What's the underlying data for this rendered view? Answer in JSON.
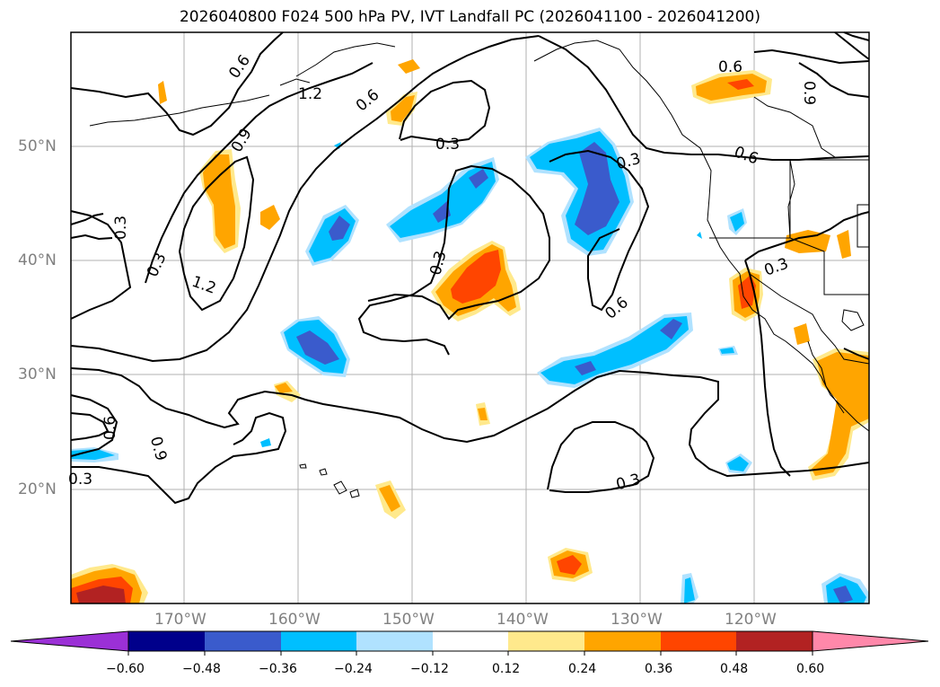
{
  "title": "2026040800 F024 500 hPa PV, IVT Landfall PC (2026041100 - 2026041200)",
  "lat_labels": [
    "50°N",
    "40°N",
    "30°N",
    "20°N"
  ],
  "lon_labels": [
    "170°W",
    "160°W",
    "150°W",
    "140°W",
    "130°W",
    "120°W"
  ],
  "contour_labels": [
    "0.6",
    "1.2",
    "0.6",
    "0.9",
    "0.3",
    "0.3",
    "0.3",
    "1.2",
    "0.3",
    "0.9",
    "0.6",
    "0.3",
    "0.3",
    "0.6",
    "0.6",
    "0.3",
    "0.3",
    "0.6"
  ],
  "colorbar": {
    "ticks": [
      "−0.60",
      "−0.48",
      "−0.36",
      "−0.24",
      "−0.12",
      "0.12",
      "0.24",
      "0.36",
      "0.48",
      "0.60"
    ],
    "colors": [
      "#9b30d6",
      "#00008b",
      "#3a5bcc",
      "#00bfff",
      "#b0e2ff",
      "#ffffff",
      "#ffe98c",
      "#ffa500",
      "#ff4500",
      "#b22222",
      "#ff88aa"
    ]
  },
  "colors": {
    "pos_light": "#ffe98c",
    "pos_mid": "#ffa500",
    "pos_strong": "#ff4500",
    "pos_max": "#b22222",
    "neg_light": "#b0e2ff",
    "neg_mid": "#00bfff",
    "neg_strong": "#3a5bcc"
  }
}
